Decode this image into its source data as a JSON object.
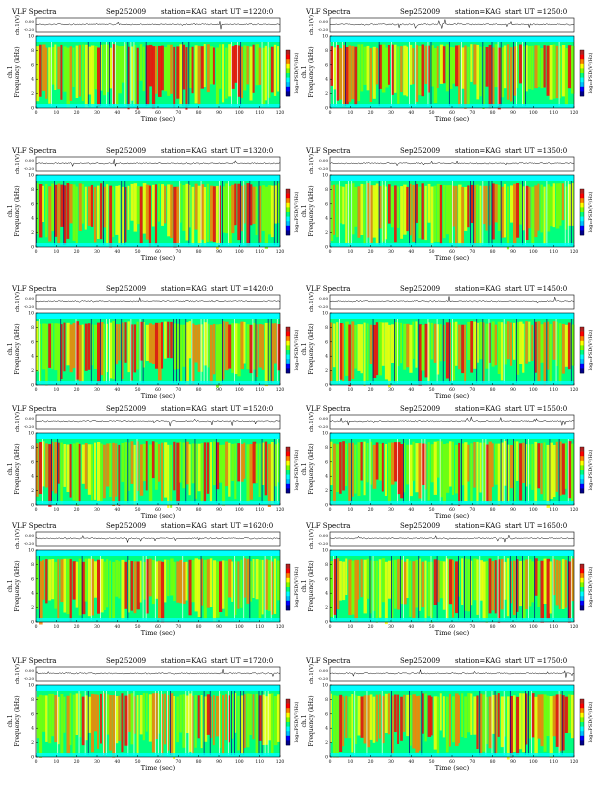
{
  "colors": {
    "spectrogram_scale": [
      "#00008b",
      "#0000ff",
      "#00bfff",
      "#00ffff",
      "#00ff7f",
      "#7fff00",
      "#ffff00",
      "#ff7f00",
      "#ff0000",
      "#b22222",
      "#ffffff"
    ],
    "background_band": "#00ffff",
    "trace": "#000000"
  },
  "chart_data": [
    {
      "type": "heatmap",
      "title": "VLF Spectra",
      "date": "Sep252009",
      "station": "station=KAG",
      "start": "start  UT  =1220:0",
      "top_ylabel": "ch.1(V)",
      "top_yticks": [
        "0.00",
        "-0.20"
      ],
      "ylabel": "Frequency (kHz)",
      "ylabel_ch": "ch.1",
      "yticks": [
        "10",
        "8",
        "6",
        "4",
        "2",
        "0"
      ],
      "ylim": [
        0,
        10
      ],
      "xlabel": "Time (sec)",
      "xticks": [
        "0",
        "10",
        "20",
        "30",
        "40",
        "50",
        "60",
        "70",
        "80",
        "90",
        "100",
        "110",
        "120"
      ],
      "xlim": [
        0,
        120
      ],
      "colorbar_label": "log₁₀PSD(V²/Hz)"
    },
    {
      "type": "heatmap",
      "title": "VLF Spectra",
      "date": "Sep252009",
      "station": "station=KAG",
      "start": "start  UT  =1250:0",
      "top_ylabel": "ch.1(V)",
      "top_yticks": [
        "0.00",
        "-0.20"
      ],
      "ylabel": "Frequency (kHz)",
      "ylabel_ch": "ch.1",
      "yticks": [
        "10",
        "8",
        "6",
        "4",
        "2",
        "0"
      ],
      "ylim": [
        0,
        10
      ],
      "xlabel": "Time (sec)",
      "xticks": [
        "0",
        "10",
        "20",
        "30",
        "40",
        "50",
        "60",
        "70",
        "80",
        "90",
        "100",
        "110",
        "120"
      ],
      "xlim": [
        0,
        120
      ],
      "colorbar_label": "log₁₀PSD(V²/Hz)"
    },
    {
      "type": "heatmap",
      "title": "VLF Spectra",
      "date": "Sep252009",
      "station": "station=KAG",
      "start": "start  UT  =1320:0",
      "top_ylabel": "ch.1(V)",
      "top_yticks": [
        "0.00",
        "-0.20"
      ],
      "ylabel": "Frequency (kHz)",
      "ylabel_ch": "ch.1",
      "yticks": [
        "10",
        "8",
        "6",
        "4",
        "2",
        "0"
      ],
      "ylim": [
        0,
        10
      ],
      "xlabel": "Time (sec)",
      "xticks": [
        "0",
        "10",
        "20",
        "30",
        "40",
        "50",
        "60",
        "70",
        "80",
        "90",
        "100",
        "110",
        "120"
      ],
      "xlim": [
        0,
        120
      ],
      "colorbar_label": "log₁₀PSD(V²/Hz)"
    },
    {
      "type": "heatmap",
      "title": "VLF Spectra",
      "date": "Sep252009",
      "station": "station=KAG",
      "start": "start  UT  =1350:0",
      "top_ylabel": "ch.1(V)",
      "top_yticks": [
        "0.00",
        "-0.20"
      ],
      "ylabel": "Frequency (kHz)",
      "ylabel_ch": "ch.1",
      "yticks": [
        "10",
        "8",
        "6",
        "4",
        "2",
        "0"
      ],
      "ylim": [
        0,
        10
      ],
      "xlabel": "Time (sec)",
      "xticks": [
        "0",
        "10",
        "20",
        "30",
        "40",
        "50",
        "60",
        "70",
        "80",
        "90",
        "100",
        "110",
        "120"
      ],
      "xlim": [
        0,
        120
      ],
      "colorbar_label": "log₁₀PSD(V²/Hz)"
    },
    {
      "type": "heatmap",
      "title": "VLF Spectra",
      "date": "Sep252009",
      "station": "station=KAG",
      "start": "start  UT  =1420:0",
      "top_ylabel": "ch.1(V)",
      "top_yticks": [
        "0.00",
        "-0.20"
      ],
      "ylabel": "Frequency (kHz)",
      "ylabel_ch": "ch.1",
      "yticks": [
        "10",
        "8",
        "6",
        "4",
        "2",
        "0"
      ],
      "ylim": [
        0,
        10
      ],
      "xlabel": "Time (sec)",
      "xticks": [
        "0",
        "10",
        "20",
        "30",
        "40",
        "50",
        "60",
        "70",
        "80",
        "90",
        "100",
        "110",
        "120"
      ],
      "xlim": [
        0,
        120
      ],
      "colorbar_label": "log₁₀PSD(V²/Hz)"
    },
    {
      "type": "heatmap",
      "title": "VLF Spectra",
      "date": "Sep252009",
      "station": "station=KAG",
      "start": "start  UT  =1450:0",
      "top_ylabel": "ch.1(V)",
      "top_yticks": [
        "0.00",
        "-0.20"
      ],
      "ylabel": "Frequency (kHz)",
      "ylabel_ch": "ch.1",
      "yticks": [
        "10",
        "8",
        "6",
        "4",
        "2",
        "0"
      ],
      "ylim": [
        0,
        10
      ],
      "xlabel": "Time (sec)",
      "xticks": [
        "0",
        "10",
        "20",
        "30",
        "40",
        "50",
        "60",
        "70",
        "80",
        "90",
        "100",
        "110",
        "120"
      ],
      "xlim": [
        0,
        120
      ],
      "colorbar_label": "log₁₀PSD(V²/Hz)"
    },
    {
      "type": "heatmap",
      "title": "VLF Spectra",
      "date": "Sep252009",
      "station": "station=KAG",
      "start": "start  UT  =1520:0",
      "top_ylabel": "ch.1(V)",
      "top_yticks": [
        "0.00",
        "-0.20"
      ],
      "ylabel": "Frequency (kHz)",
      "ylabel_ch": "ch.1",
      "yticks": [
        "10",
        "8",
        "6",
        "4",
        "2",
        "0"
      ],
      "ylim": [
        0,
        10
      ],
      "xlabel": "Time (sec)",
      "xticks": [
        "0",
        "10",
        "20",
        "30",
        "40",
        "50",
        "60",
        "70",
        "80",
        "90",
        "100",
        "110",
        "120"
      ],
      "xlim": [
        0,
        120
      ],
      "colorbar_label": "log₁₀PSD(V²/Hz)"
    },
    {
      "type": "heatmap",
      "title": "VLF Spectra",
      "date": "Sep252009",
      "station": "station=KAG",
      "start": "start  UT  =1550:0",
      "top_ylabel": "ch.1(V)",
      "top_yticks": [
        "0.00",
        "-0.20"
      ],
      "ylabel": "Frequency (kHz)",
      "ylabel_ch": "ch.1",
      "yticks": [
        "10",
        "8",
        "6",
        "4",
        "2",
        "0"
      ],
      "ylim": [
        0,
        10
      ],
      "xlabel": "Time (sec)",
      "xticks": [
        "0",
        "10",
        "20",
        "30",
        "40",
        "50",
        "60",
        "70",
        "80",
        "90",
        "100",
        "110",
        "120"
      ],
      "xlim": [
        0,
        120
      ],
      "colorbar_label": "log₁₀PSD(V²/Hz)"
    },
    {
      "type": "heatmap",
      "title": "VLF Spectra",
      "date": "Sep252009",
      "station": "station=KAG",
      "start": "start  UT  =1620:0",
      "top_ylabel": "ch.1(V)",
      "top_yticks": [
        "0.00",
        "-0.20"
      ],
      "ylabel": "Frequency (kHz)",
      "ylabel_ch": "ch.1",
      "yticks": [
        "10",
        "8",
        "6",
        "4",
        "2",
        "0"
      ],
      "ylim": [
        0,
        10
      ],
      "xlabel": "Time (sec)",
      "xticks": [
        "0",
        "10",
        "20",
        "30",
        "40",
        "50",
        "60",
        "70",
        "80",
        "90",
        "100",
        "110",
        "120"
      ],
      "xlim": [
        0,
        120
      ],
      "colorbar_label": "log₁₀PSD(V²/Hz)"
    },
    {
      "type": "heatmap",
      "title": "VLF Spectra",
      "date": "Sep252009",
      "station": "station=KAG",
      "start": "start  UT  =1650:0",
      "top_ylabel": "ch.1(V)",
      "top_yticks": [
        "0.00",
        "-0.20"
      ],
      "ylabel": "Frequency (kHz)",
      "ylabel_ch": "ch.1",
      "yticks": [
        "10",
        "8",
        "6",
        "4",
        "2",
        "0"
      ],
      "ylim": [
        0,
        10
      ],
      "xlabel": "Time (sec)",
      "xticks": [
        "0",
        "10",
        "20",
        "30",
        "40",
        "50",
        "60",
        "70",
        "80",
        "90",
        "100",
        "110",
        "120"
      ],
      "xlim": [
        0,
        120
      ],
      "colorbar_label": "log₁₀PSD(V²/Hz)"
    },
    {
      "type": "heatmap",
      "title": "VLF Spectra",
      "date": "Sep252009",
      "station": "station=KAG",
      "start": "start  UT  =1720:0",
      "top_ylabel": "ch.1(V)",
      "top_yticks": [
        "0.00",
        "-0.20"
      ],
      "ylabel": "Frequency (kHz)",
      "ylabel_ch": "ch.1",
      "yticks": [
        "10",
        "8",
        "6",
        "4",
        "2",
        "0"
      ],
      "ylim": [
        0,
        10
      ],
      "xlabel": "Time (sec)",
      "xticks": [
        "0",
        "10",
        "20",
        "30",
        "40",
        "50",
        "60",
        "70",
        "80",
        "90",
        "100",
        "110",
        "120"
      ],
      "xlim": [
        0,
        120
      ],
      "colorbar_label": "log₁₀PSD(V²/Hz)"
    },
    {
      "type": "heatmap",
      "title": "VLF Spectra",
      "date": "Sep252009",
      "station": "station=KAG",
      "start": "start  UT  =1750:0",
      "top_ylabel": "ch.1(V)",
      "top_yticks": [
        "0.00",
        "-0.20"
      ],
      "ylabel": "Frequency (kHz)",
      "ylabel_ch": "ch.1",
      "yticks": [
        "10",
        "8",
        "6",
        "4",
        "2",
        "0"
      ],
      "ylim": [
        0,
        10
      ],
      "xlabel": "Time (sec)",
      "xticks": [
        "0",
        "10",
        "20",
        "30",
        "40",
        "50",
        "60",
        "70",
        "80",
        "90",
        "100",
        "110",
        "120"
      ],
      "xlim": [
        0,
        120
      ],
      "colorbar_label": "log₁₀PSD(V²/Hz)"
    }
  ]
}
